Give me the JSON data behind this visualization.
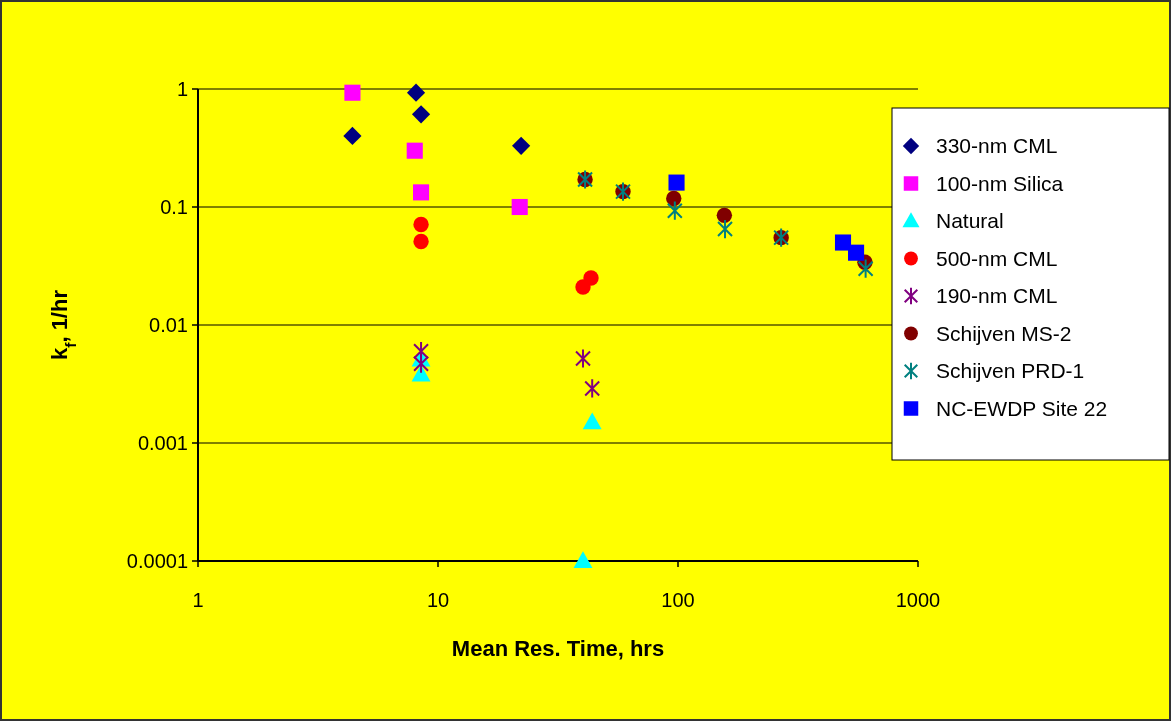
{
  "chart_data": {
    "type": "scatter",
    "xlabel": "Mean Res. Time, hrs",
    "ylabel": "k$_{f}$, 1/hr",
    "log": "xy",
    "grid": "y",
    "legend": "right",
    "xlim": [
      1,
      1000
    ],
    "xticks": [
      1,
      10,
      100,
      1000
    ],
    "ylim": [
      0.0001,
      1
    ],
    "yticks": [
      0.0001,
      0.001,
      0.01,
      0.1,
      1
    ],
    "series": [
      {
        "name": "330-nm CML",
        "color": "#000080",
        "marker": "diamond",
        "x": [
          4.4,
          8.1,
          8.5,
          22.2
        ],
        "values": [
          0.4,
          0.93,
          0.61,
          0.33
        ]
      },
      {
        "name": "100-nm Silica",
        "color": "#ff00ff",
        "marker": "square",
        "x": [
          4.4,
          8.0,
          8.5,
          21.9
        ],
        "values": [
          0.93,
          0.3,
          0.133,
          0.1
        ]
      },
      {
        "name": "Natural",
        "color": "#00ffff",
        "marker": "triangle",
        "x": [
          8.5,
          8.5,
          43.9,
          40.2
        ],
        "values": [
          0.0051,
          0.0038,
          0.0015,
          0.0001
        ]
      },
      {
        "name": "500-nm CML",
        "color": "#ff0000",
        "marker": "circle",
        "x": [
          8.5,
          8.5,
          40.2,
          43.4
        ],
        "values": [
          0.071,
          0.051,
          0.021,
          0.025
        ]
      },
      {
        "name": "190-nm CML",
        "color": "#800080",
        "marker": "cross",
        "x": [
          8.5,
          8.5,
          40.2,
          43.9
        ],
        "values": [
          0.006,
          0.0047,
          0.0052,
          0.0029
        ]
      },
      {
        "name": "Schijven MS-2",
        "color": "#800000",
        "marker": "circle",
        "x": [
          41,
          59,
          96,
          156,
          269,
          601
        ],
        "values": [
          0.171,
          0.135,
          0.118,
          0.085,
          0.055,
          0.034
        ]
      },
      {
        "name": "Schijven PRD-1",
        "color": "#008080",
        "marker": "cross",
        "x": [
          41,
          59,
          97,
          157,
          269,
          605
        ],
        "values": [
          0.171,
          0.135,
          0.093,
          0.065,
          0.055,
          0.03
        ]
      },
      {
        "name": "NC-EWDP Site 22",
        "color": "#0000ff",
        "marker": "square",
        "x": [
          98.6,
          487,
          552
        ],
        "values": [
          0.161,
          0.05,
          0.041
        ]
      }
    ]
  }
}
